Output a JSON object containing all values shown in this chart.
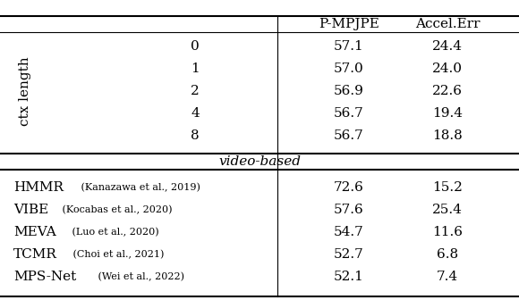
{
  "header": [
    "P-MPJPE",
    "Accel.Err"
  ],
  "ctx_label": "ctx length",
  "ctx_rows": [
    {
      "ctx": "0",
      "pmpjpe": "57.1",
      "accel": "24.4"
    },
    {
      "ctx": "1",
      "pmpjpe": "57.0",
      "accel": "24.0"
    },
    {
      "ctx": "2",
      "pmpjpe": "56.9",
      "accel": "22.6"
    },
    {
      "ctx": "4",
      "pmpjpe": "56.7",
      "accel": "19.4"
    },
    {
      "ctx": "8",
      "pmpjpe": "56.7",
      "accel": "18.8"
    }
  ],
  "video_label": "video-based",
  "video_rows": [
    {
      "name": "HMMR",
      "cite": " (Kanazawa et al., 2019)",
      "pmpjpe": "72.6",
      "accel": "15.2"
    },
    {
      "name": "VIBE",
      "cite": " (Kocabas et al., 2020)",
      "pmpjpe": "57.6",
      "accel": "25.4"
    },
    {
      "name": "MEVA",
      "cite": " (Luo et al., 2020)",
      "pmpjpe": "54.7",
      "accel": "11.6"
    },
    {
      "name": "TCMR",
      "cite": " (Choi et al., 2021)",
      "pmpjpe": "52.7",
      "accel": "6.8"
    },
    {
      "name": "MPS-Net",
      "cite": " (Wei et al., 2022)",
      "pmpjpe": "52.1",
      "accel": "7.4"
    }
  ],
  "bg_color": "#ffffff",
  "text_color": "#000000",
  "line_color": "#000000",
  "fs_main": 11,
  "fs_small": 8,
  "fs_header": 11
}
